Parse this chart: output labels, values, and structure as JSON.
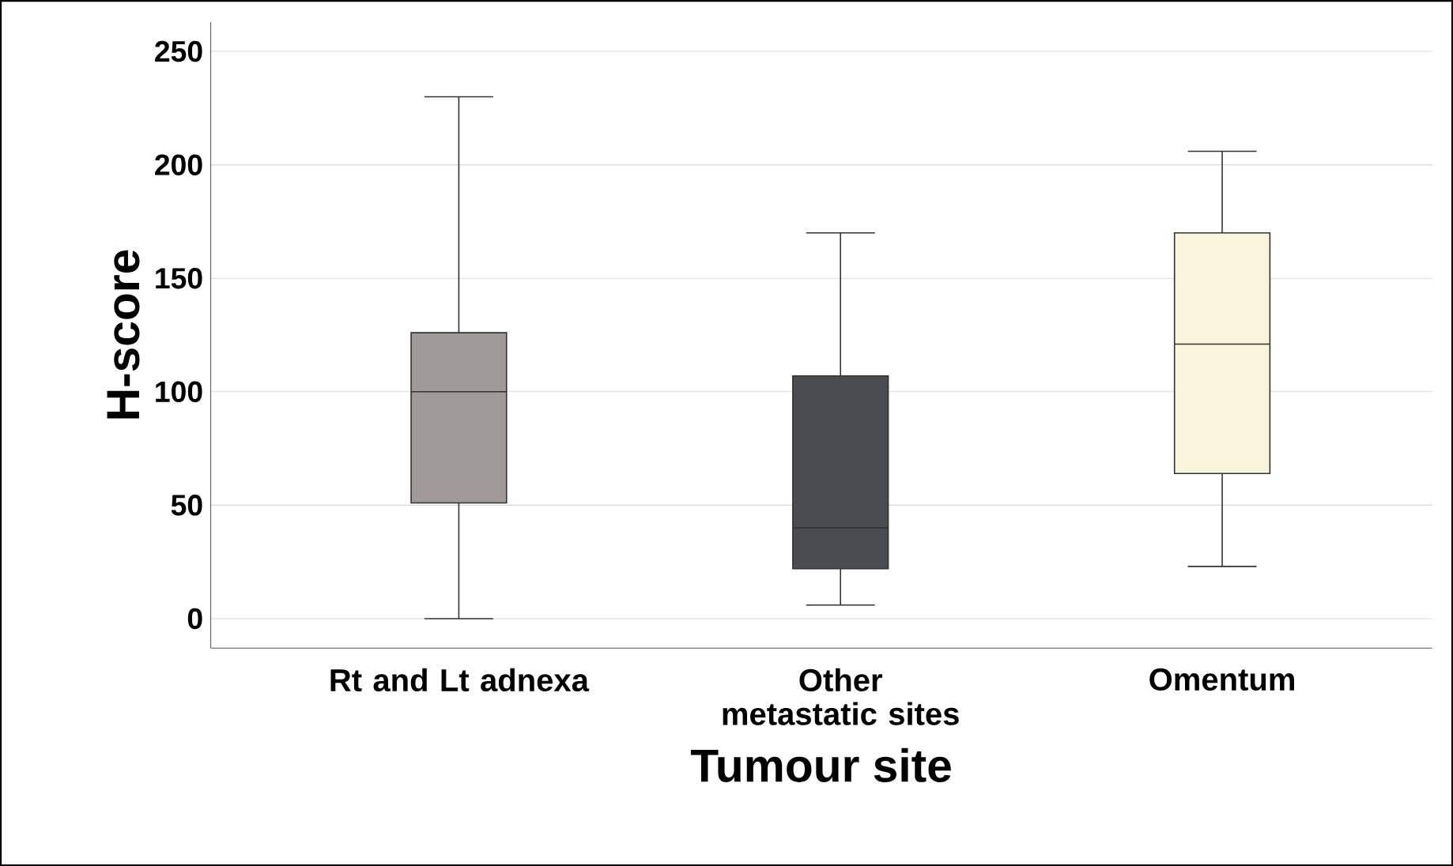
{
  "chart_data": {
    "type": "box",
    "xlabel": "Tumour site",
    "ylabel": "H-score",
    "categories": [
      "Rt and Lt adnexa",
      "Other metastatic sites",
      "Omentum"
    ],
    "colors": [
      "#a09a98",
      "#4b4c4e",
      "#fbf4dc"
    ],
    "boxes": [
      {
        "low": 0,
        "q1": 51,
        "median": 100,
        "q3": 126,
        "high": 230
      },
      {
        "low": 6,
        "q1": 22,
        "median": 40,
        "q3": 107,
        "high": 170
      },
      {
        "low": 23,
        "q1": 64,
        "median": 121,
        "q3": 170,
        "high": 206
      }
    ],
    "ylim": [
      -13,
      263
    ],
    "yticks": [
      0,
      50,
      100,
      150,
      200,
      250
    ],
    "grid": "y"
  }
}
